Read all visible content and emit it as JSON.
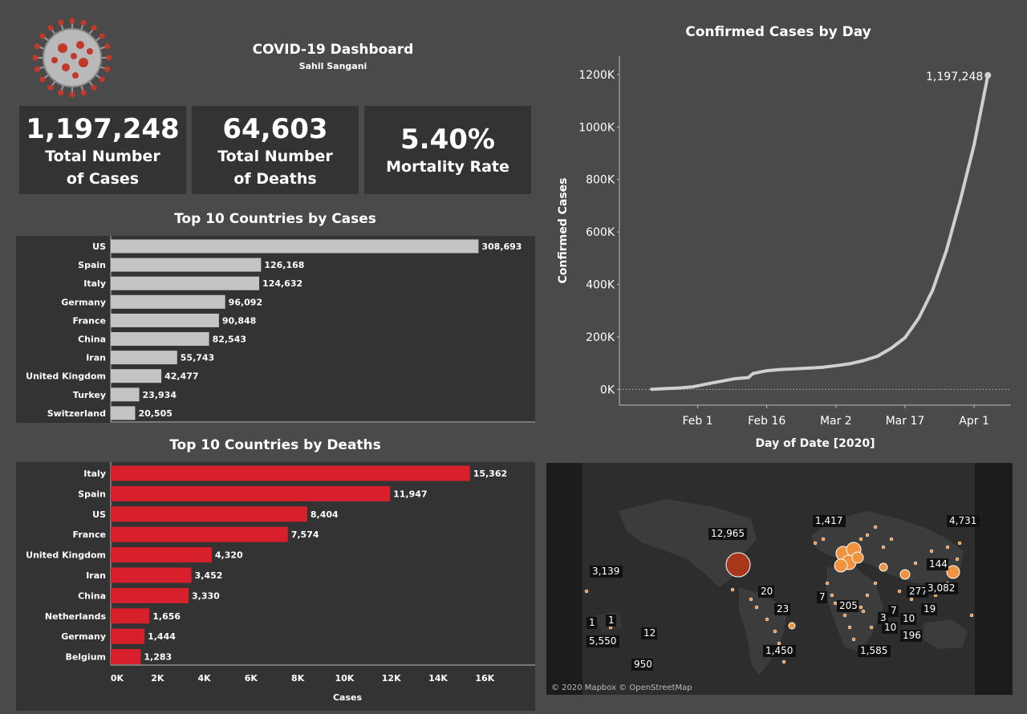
{
  "header": {
    "title": "COVID-19 Dashboard",
    "author": "Sahil Sangani",
    "logo_icon": "coronavirus-icon"
  },
  "kpis": [
    {
      "value": "1,197,248",
      "label": "Total Number of Cases"
    },
    {
      "value": "64,603",
      "label": "Total Number of Deaths"
    },
    {
      "value": "5.40%",
      "label": "Mortality Rate"
    }
  ],
  "chart_data": [
    {
      "id": "cases-by-country",
      "type": "bar",
      "orientation": "horizontal",
      "title": "Top 10 Countries by Cases",
      "categories": [
        "US",
        "Spain",
        "Italy",
        "Germany",
        "France",
        "China",
        "Iran",
        "United Kingdom",
        "Turkey",
        "Switzerland"
      ],
      "values": [
        308693,
        126168,
        124632,
        96092,
        90848,
        82543,
        55743,
        42477,
        23934,
        20505
      ],
      "value_labels": [
        "308,693",
        "126,168",
        "124,632",
        "96,092",
        "90,848",
        "82,543",
        "55,743",
        "42,477",
        "23,934",
        "20,505"
      ],
      "color": "#c4c4c4",
      "xlim": [
        0,
        330000
      ]
    },
    {
      "id": "deaths-by-country",
      "type": "bar",
      "orientation": "horizontal",
      "title": "Top 10 Countries by Deaths",
      "categories": [
        "Italy",
        "Spain",
        "US",
        "France",
        "United Kingdom",
        "Iran",
        "China",
        "Netherlands",
        "Germany",
        "Belgium"
      ],
      "values": [
        15362,
        11947,
        8404,
        7574,
        4320,
        3452,
        3330,
        1656,
        1444,
        1283
      ],
      "value_labels": [
        "15,362",
        "11,947",
        "8,404",
        "7,574",
        "4,320",
        "3,452",
        "3,330",
        "1,656",
        "1,444",
        "1,283"
      ],
      "color": "#d7202b",
      "xlabel": "Cases",
      "xlim": [
        0,
        17500
      ],
      "xticks": [
        0,
        2000,
        4000,
        6000,
        8000,
        10000,
        12000,
        14000,
        16000
      ],
      "xtick_labels": [
        "0K",
        "2K",
        "4K",
        "6K",
        "8K",
        "10K",
        "12K",
        "14K",
        "16K"
      ]
    },
    {
      "id": "confirmed-by-day",
      "type": "line",
      "title": "Confirmed Cases by Day",
      "xlabel": "Day of Date [2020]",
      "ylabel": "Confirmed Cases",
      "x_start": "2020-01-22",
      "x": [
        "2020-01-22",
        "2020-01-25",
        "2020-01-28",
        "2020-01-31",
        "2020-02-03",
        "2020-02-06",
        "2020-02-09",
        "2020-02-12",
        "2020-02-13",
        "2020-02-16",
        "2020-02-19",
        "2020-02-22",
        "2020-02-25",
        "2020-02-28",
        "2020-03-02",
        "2020-03-05",
        "2020-03-08",
        "2020-03-11",
        "2020-03-14",
        "2020-03-17",
        "2020-03-20",
        "2020-03-23",
        "2020-03-26",
        "2020-03-29",
        "2020-04-01",
        "2020-04-04"
      ],
      "y": [
        555,
        2927,
        5578,
        9927,
        20630,
        30818,
        40553,
        45221,
        60374,
        71226,
        75641,
        78572,
        80989,
        84124,
        90306,
        97886,
        109821,
        126214,
        156653,
        197146,
        272166,
        378287,
        529591,
        720117,
        932605,
        1197248
      ],
      "ylim": [
        -60000,
        1270000
      ],
      "yticks": [
        0,
        200000,
        400000,
        600000,
        800000,
        1000000,
        1200000
      ],
      "ytick_labels": [
        "0K",
        "200K",
        "400K",
        "600K",
        "800K",
        "1000K",
        "1200K"
      ],
      "xticks": [
        "2020-02-01",
        "2020-02-16",
        "2020-03-02",
        "2020-03-17",
        "2020-04-01"
      ],
      "xtick_labels": [
        "Feb 1",
        "Feb 16",
        "Mar 2",
        "Mar 17",
        "Apr 1"
      ],
      "end_label": "1,197,248",
      "color": "#cfcfcf"
    }
  ],
  "map": {
    "attribution": "© 2020 Mapbox © OpenStreetMap",
    "labels": [
      {
        "text": "12,965"
      },
      {
        "text": "1,417"
      },
      {
        "text": "4,731"
      },
      {
        "text": "3,139"
      },
      {
        "text": "144"
      },
      {
        "text": "277"
      },
      {
        "text": "3,082"
      },
      {
        "text": "20"
      },
      {
        "text": "7"
      },
      {
        "text": "23"
      },
      {
        "text": "205"
      },
      {
        "text": "7"
      },
      {
        "text": "19"
      },
      {
        "text": "3"
      },
      {
        "text": "10"
      },
      {
        "text": "10"
      },
      {
        "text": "196"
      },
      {
        "text": "1"
      },
      {
        "text": "1"
      },
      {
        "text": "5,550"
      },
      {
        "text": "12"
      },
      {
        "text": "950"
      },
      {
        "text": "1,450"
      },
      {
        "text": "1,585"
      }
    ],
    "colors": {
      "bubble": "#f0923e",
      "bubble_large": "#a8361a",
      "ocean": "#2d2d2d",
      "land": "#3d3d3d",
      "side": "#1c1c1c"
    }
  }
}
